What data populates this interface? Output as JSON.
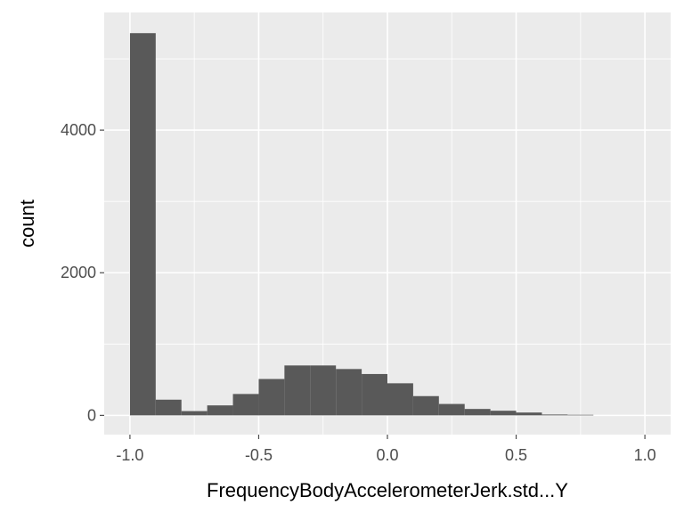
{
  "chart_data": {
    "type": "bar",
    "title": "",
    "xlabel": "FrequencyBodyAccelerometerJerk.std...Y",
    "ylabel": "count",
    "xlim": [
      -1.1,
      1.1
    ],
    "ylim": [
      -270,
      5650
    ],
    "x_ticks": [
      -1.0,
      -0.5,
      0.0,
      0.5,
      1.0
    ],
    "x_tick_labels": [
      "-1.0",
      "-0.5",
      "0.0",
      "0.5",
      "1.0"
    ],
    "y_ticks": [
      0,
      2000,
      4000
    ],
    "y_tick_labels": [
      "0",
      "2000",
      "4000"
    ],
    "grid": true,
    "bin_width": 0.1,
    "bins": [
      {
        "x0": -1.0,
        "x1": -0.9,
        "count": 5360
      },
      {
        "x0": -0.9,
        "x1": -0.8,
        "count": 220
      },
      {
        "x0": -0.8,
        "x1": -0.7,
        "count": 60
      },
      {
        "x0": -0.7,
        "x1": -0.6,
        "count": 140
      },
      {
        "x0": -0.6,
        "x1": -0.5,
        "count": 300
      },
      {
        "x0": -0.5,
        "x1": -0.4,
        "count": 510
      },
      {
        "x0": -0.4,
        "x1": -0.3,
        "count": 700
      },
      {
        "x0": -0.3,
        "x1": -0.2,
        "count": 700
      },
      {
        "x0": -0.2,
        "x1": -0.1,
        "count": 650
      },
      {
        "x0": -0.1,
        "x1": 0.0,
        "count": 580
      },
      {
        "x0": 0.0,
        "x1": 0.1,
        "count": 450
      },
      {
        "x0": 0.1,
        "x1": 0.2,
        "count": 270
      },
      {
        "x0": 0.2,
        "x1": 0.3,
        "count": 160
      },
      {
        "x0": 0.3,
        "x1": 0.4,
        "count": 90
      },
      {
        "x0": 0.4,
        "x1": 0.5,
        "count": 65
      },
      {
        "x0": 0.5,
        "x1": 0.6,
        "count": 40
      },
      {
        "x0": 0.6,
        "x1": 0.7,
        "count": 12
      },
      {
        "x0": 0.7,
        "x1": 0.8,
        "count": 8
      }
    ],
    "colors": {
      "panel": "#ebebeb",
      "grid": "#ffffff",
      "bar": "#595959",
      "tick": "#4d4d4d"
    }
  }
}
